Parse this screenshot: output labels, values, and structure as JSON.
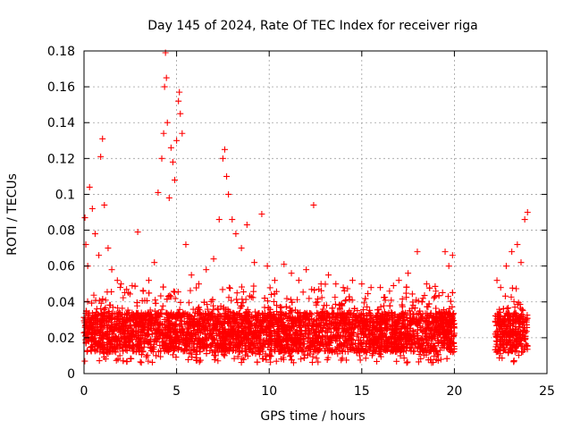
{
  "chart_data": {
    "type": "scatter",
    "title": "Day 145 of 2024, Rate Of TEC Index for receiver riga",
    "xlabel": "GPS time / hours",
    "ylabel": "ROTI / TECUs",
    "xlim": [
      0,
      25
    ],
    "ylim": [
      0,
      0.18
    ],
    "xticks": [
      0,
      5,
      10,
      15,
      20,
      25
    ],
    "yticks": [
      0,
      0.02,
      0.04,
      0.06,
      0.08,
      0.1,
      0.12,
      0.14,
      0.16,
      0.18
    ],
    "xtick_labels": [
      "0",
      "5",
      "10",
      "15",
      "20",
      "25"
    ],
    "ytick_labels": [
      "0",
      "0.02",
      "0.04",
      "0.06",
      "0.08",
      "0.1",
      "0.12",
      "0.14",
      "0.16",
      "0.18"
    ],
    "grid": true,
    "marker": "plus",
    "color": "#ff0000",
    "data_gap_hours": [
      20.0,
      22.2
    ],
    "series": [
      {
        "x": [
          0.05,
          0.1,
          0.2,
          0.3,
          0.45,
          0.6,
          0.8,
          0.9,
          1.0,
          1.1,
          1.3,
          1.5,
          1.8,
          2.0,
          2.3,
          2.6,
          2.9,
          3.2,
          3.5,
          3.8,
          4.0,
          4.2,
          4.3,
          4.35,
          4.4,
          4.45,
          4.5,
          4.6,
          4.7,
          4.8,
          4.9,
          5.0,
          5.1,
          5.15,
          5.2,
          5.3,
          5.5,
          5.8,
          6.2,
          6.6,
          7.0,
          7.3,
          7.5,
          7.6,
          7.7,
          7.8,
          8.0,
          8.2,
          8.5,
          8.8,
          9.2,
          9.6,
          9.9,
          10.3,
          10.8,
          11.2,
          11.6,
          12.0,
          12.4,
          12.8,
          13.2,
          13.6,
          14.0,
          14.5,
          15.0,
          15.5,
          16.0,
          16.5,
          17.0,
          17.5,
          18.0,
          18.5,
          19.0,
          19.5,
          19.7,
          19.9,
          22.3,
          22.5,
          22.8,
          23.1,
          23.4,
          23.6,
          23.8,
          23.95
        ],
        "y": [
          0.087,
          0.072,
          0.06,
          0.104,
          0.092,
          0.078,
          0.066,
          0.121,
          0.131,
          0.094,
          0.07,
          0.058,
          0.052,
          0.05,
          0.047,
          0.049,
          0.079,
          0.046,
          0.052,
          0.062,
          0.101,
          0.12,
          0.134,
          0.16,
          0.179,
          0.165,
          0.14,
          0.098,
          0.126,
          0.118,
          0.108,
          0.13,
          0.152,
          0.157,
          0.145,
          0.134,
          0.072,
          0.055,
          0.05,
          0.058,
          0.064,
          0.086,
          0.12,
          0.125,
          0.11,
          0.1,
          0.086,
          0.078,
          0.07,
          0.083,
          0.062,
          0.089,
          0.06,
          0.052,
          0.061,
          0.056,
          0.052,
          0.058,
          0.094,
          0.05,
          0.055,
          0.05,
          0.048,
          0.052,
          0.05,
          0.048,
          0.048,
          0.046,
          0.052,
          0.056,
          0.068,
          0.05,
          0.046,
          0.068,
          0.06,
          0.066,
          0.052,
          0.048,
          0.06,
          0.068,
          0.072,
          0.062,
          0.086,
          0.09
        ]
      }
    ]
  }
}
